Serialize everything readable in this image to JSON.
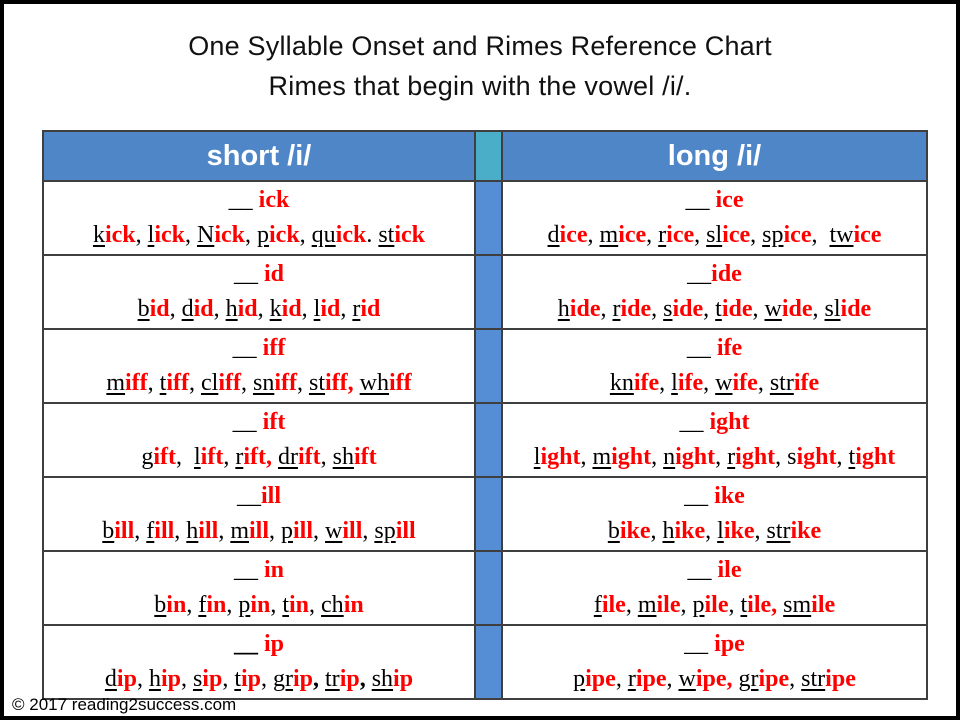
{
  "page": {
    "title_line1": "One Syllable Onset and Rimes Reference Chart",
    "title_line2": "Rimes that begin with the vowel /i/.",
    "footer": "© 2017 reading2success.com"
  },
  "colors": {
    "header_blue": "#4e86c8",
    "header_teal": "#4aaec8",
    "separator_blue": "#568ed5",
    "rime_red": "#ff0000",
    "grid_line": "#3f3f3f"
  },
  "segment_style_legend": {
    "u": "onset letters — black, underlined",
    "r": "rime letters — red, bold",
    "p": "plain black text",
    "b": "black bold text"
  },
  "table": {
    "headers": {
      "short": "short /i/",
      "long": "long /i/"
    },
    "rows": [
      {
        "short": {
          "heading": [
            [
              "__ ",
              "p"
            ],
            [
              "ick",
              "r"
            ]
          ],
          "words": [
            [
              "k",
              "u"
            ],
            [
              "ick",
              "r"
            ],
            [
              ", ",
              "p"
            ],
            [
              "l",
              "u"
            ],
            [
              "ick",
              "r"
            ],
            [
              ", ",
              "p"
            ],
            [
              "N",
              "u"
            ],
            [
              "ick",
              "r"
            ],
            [
              ", ",
              "p"
            ],
            [
              "p",
              "u"
            ],
            [
              "ick",
              "r"
            ],
            [
              ", ",
              "p"
            ],
            [
              "qu",
              "u"
            ],
            [
              "ick",
              "r"
            ],
            [
              ". ",
              "p"
            ],
            [
              "st",
              "u"
            ],
            [
              "ick",
              "r"
            ]
          ]
        },
        "long": {
          "heading": [
            [
              "__ ",
              "p"
            ],
            [
              "ice",
              "r"
            ]
          ],
          "words": [
            [
              "d",
              "u"
            ],
            [
              "ice",
              "r"
            ],
            [
              ", ",
              "p"
            ],
            [
              "m",
              "u"
            ],
            [
              "ice",
              "r"
            ],
            [
              ", ",
              "p"
            ],
            [
              "r",
              "u"
            ],
            [
              "ice",
              "r"
            ],
            [
              ", ",
              "p"
            ],
            [
              "sl",
              "u"
            ],
            [
              "ice",
              "r"
            ],
            [
              ", ",
              "p"
            ],
            [
              "sp",
              "u"
            ],
            [
              "ice",
              "r"
            ],
            [
              ",  ",
              "p"
            ],
            [
              "tw",
              "u"
            ],
            [
              "ice",
              "r"
            ]
          ]
        }
      },
      {
        "short": {
          "heading": [
            [
              "__ ",
              "p"
            ],
            [
              "id",
              "r"
            ]
          ],
          "words": [
            [
              "b",
              "u"
            ],
            [
              "id",
              "r"
            ],
            [
              ", ",
              "p"
            ],
            [
              "d",
              "u"
            ],
            [
              "id",
              "r"
            ],
            [
              ", ",
              "p"
            ],
            [
              "h",
              "u"
            ],
            [
              "id",
              "r"
            ],
            [
              ", ",
              "p"
            ],
            [
              "k",
              "u"
            ],
            [
              "id",
              "r"
            ],
            [
              ", ",
              "p"
            ],
            [
              "l",
              "u"
            ],
            [
              "id",
              "r"
            ],
            [
              ", ",
              "p"
            ],
            [
              "r",
              "u"
            ],
            [
              "id",
              "r"
            ]
          ]
        },
        "long": {
          "heading": [
            [
              "__",
              "p"
            ],
            [
              "ide",
              "r"
            ]
          ],
          "words": [
            [
              "h",
              "u"
            ],
            [
              "ide",
              "r"
            ],
            [
              ", ",
              "p"
            ],
            [
              "r",
              "u"
            ],
            [
              "ide",
              "r"
            ],
            [
              ", ",
              "p"
            ],
            [
              "s",
              "u"
            ],
            [
              "ide",
              "r"
            ],
            [
              ", ",
              "p"
            ],
            [
              "t",
              "u"
            ],
            [
              "ide",
              "r"
            ],
            [
              ", ",
              "p"
            ],
            [
              "w",
              "u"
            ],
            [
              "ide",
              "r"
            ],
            [
              ", ",
              "p"
            ],
            [
              "sl",
              "u"
            ],
            [
              "ide",
              "r"
            ]
          ]
        }
      },
      {
        "short": {
          "heading": [
            [
              "__ ",
              "p"
            ],
            [
              "iff",
              "r"
            ]
          ],
          "words": [
            [
              "m",
              "u"
            ],
            [
              "iff",
              "r"
            ],
            [
              ", ",
              "p"
            ],
            [
              "t",
              "u"
            ],
            [
              "iff",
              "r"
            ],
            [
              ", ",
              "p"
            ],
            [
              "cl",
              "u"
            ],
            [
              "iff",
              "r"
            ],
            [
              ", ",
              "p"
            ],
            [
              "sn",
              "u"
            ],
            [
              "iff",
              "r"
            ],
            [
              ", ",
              "p"
            ],
            [
              "st",
              "u"
            ],
            [
              "iff",
              "r"
            ],
            [
              ", ",
              "r"
            ],
            [
              "wh",
              "u"
            ],
            [
              "iff",
              "r"
            ]
          ]
        },
        "long": {
          "heading": [
            [
              "__ ",
              "p"
            ],
            [
              "ife",
              "r"
            ]
          ],
          "words": [
            [
              "kn",
              "u"
            ],
            [
              "ife",
              "r"
            ],
            [
              ", ",
              "p"
            ],
            [
              "l",
              "u"
            ],
            [
              "ife",
              "r"
            ],
            [
              ", ",
              "p"
            ],
            [
              "w",
              "u"
            ],
            [
              "ife",
              "r"
            ],
            [
              ", ",
              "p"
            ],
            [
              "str",
              "u"
            ],
            [
              "ife",
              "r"
            ]
          ]
        }
      },
      {
        "short": {
          "heading": [
            [
              "__ ",
              "p"
            ],
            [
              "ift",
              "r"
            ]
          ],
          "words": [
            [
              "g",
              "u"
            ],
            [
              "ift",
              "r"
            ],
            [
              ",  ",
              "p"
            ],
            [
              "l",
              "u"
            ],
            [
              "ift",
              "r"
            ],
            [
              ", ",
              "p"
            ],
            [
              "r",
              "u"
            ],
            [
              "ift",
              "r"
            ],
            [
              ", ",
              "r"
            ],
            [
              "dr",
              "u"
            ],
            [
              "ift",
              "r"
            ],
            [
              ", ",
              "p"
            ],
            [
              "sh",
              "u"
            ],
            [
              "ift",
              "r"
            ]
          ]
        },
        "long": {
          "heading": [
            [
              "__ ",
              "p"
            ],
            [
              "ight",
              "r"
            ]
          ],
          "words": [
            [
              "l",
              "u"
            ],
            [
              "ight",
              "r"
            ],
            [
              ", ",
              "p"
            ],
            [
              "m",
              "u"
            ],
            [
              "ight",
              "r"
            ],
            [
              ", ",
              "p"
            ],
            [
              "n",
              "u"
            ],
            [
              "ight",
              "r"
            ],
            [
              ", ",
              "p"
            ],
            [
              "r",
              "u"
            ],
            [
              "ight",
              "r"
            ],
            [
              ", ",
              "p"
            ],
            [
              "s",
              "p"
            ],
            [
              "ight",
              "r"
            ],
            [
              ", ",
              "p"
            ],
            [
              "t",
              "u"
            ],
            [
              "ight",
              "r"
            ]
          ]
        }
      },
      {
        "short": {
          "heading": [
            [
              "__",
              "p"
            ],
            [
              "ill",
              "r"
            ]
          ],
          "words": [
            [
              "b",
              "u"
            ],
            [
              "ill",
              "r"
            ],
            [
              ", ",
              "p"
            ],
            [
              "f",
              "u"
            ],
            [
              "ill",
              "r"
            ],
            [
              ", ",
              "p"
            ],
            [
              "h",
              "u"
            ],
            [
              "ill",
              "r"
            ],
            [
              ", ",
              "p"
            ],
            [
              "m",
              "u"
            ],
            [
              "ill",
              "r"
            ],
            [
              ", ",
              "p"
            ],
            [
              "p",
              "u"
            ],
            [
              "ill",
              "r"
            ],
            [
              ", ",
              "p"
            ],
            [
              "w",
              "u"
            ],
            [
              "ill",
              "r"
            ],
            [
              ", ",
              "p"
            ],
            [
              "sp",
              "u"
            ],
            [
              "ill",
              "r"
            ]
          ]
        },
        "long": {
          "heading": [
            [
              "__ ",
              "p"
            ],
            [
              "ike",
              "r"
            ]
          ],
          "words": [
            [
              "b",
              "u"
            ],
            [
              "ike",
              "r"
            ],
            [
              ", ",
              "p"
            ],
            [
              "h",
              "u"
            ],
            [
              "ike",
              "r"
            ],
            [
              ", ",
              "p"
            ],
            [
              "l",
              "u"
            ],
            [
              "ike",
              "r"
            ],
            [
              ", ",
              "p"
            ],
            [
              "str",
              "u"
            ],
            [
              "ike",
              "r"
            ]
          ]
        }
      },
      {
        "short": {
          "heading": [
            [
              "__ ",
              "p"
            ],
            [
              "in",
              "r"
            ]
          ],
          "words": [
            [
              "b",
              "u"
            ],
            [
              "in",
              "r"
            ],
            [
              ", ",
              "p"
            ],
            [
              "f",
              "u"
            ],
            [
              "in",
              "r"
            ],
            [
              ", ",
              "p"
            ],
            [
              "p",
              "u"
            ],
            [
              "in",
              "r"
            ],
            [
              ", ",
              "p"
            ],
            [
              "t",
              "u"
            ],
            [
              "in",
              "r"
            ],
            [
              ", ",
              "p"
            ],
            [
              "ch",
              "u"
            ],
            [
              "in",
              "r"
            ]
          ]
        },
        "long": {
          "heading": [
            [
              "__ ",
              "p"
            ],
            [
              "ile",
              "r"
            ]
          ],
          "words": [
            [
              "f",
              "u"
            ],
            [
              "ile",
              "r"
            ],
            [
              ", ",
              "p"
            ],
            [
              "m",
              "u"
            ],
            [
              "ile",
              "r"
            ],
            [
              ", ",
              "p"
            ],
            [
              "p",
              "u"
            ],
            [
              "ile",
              "r"
            ],
            [
              ", ",
              "p"
            ],
            [
              "t",
              "u"
            ],
            [
              "ile",
              "r"
            ],
            [
              ", ",
              "r"
            ],
            [
              "sm",
              "u"
            ],
            [
              "ile",
              "r"
            ]
          ]
        }
      },
      {
        "short": {
          "heading": [
            [
              "__ ",
              "b"
            ],
            [
              "ip",
              "r"
            ]
          ],
          "words": [
            [
              "d",
              "u"
            ],
            [
              "ip",
              "r"
            ],
            [
              ", ",
              "p"
            ],
            [
              "h",
              "u"
            ],
            [
              "ip",
              "r"
            ],
            [
              ", ",
              "p"
            ],
            [
              "s",
              "u"
            ],
            [
              "ip",
              "r"
            ],
            [
              ", ",
              "p"
            ],
            [
              "t",
              "u"
            ],
            [
              "ip",
              "r"
            ],
            [
              ", ",
              "p"
            ],
            [
              "gr",
              "u"
            ],
            [
              "ip",
              "r"
            ],
            [
              ", ",
              "b"
            ],
            [
              "tr",
              "u"
            ],
            [
              "ip",
              "r"
            ],
            [
              ", ",
              "b"
            ],
            [
              "sh",
              "u"
            ],
            [
              "ip",
              "r"
            ]
          ]
        },
        "long": {
          "heading": [
            [
              "__ ",
              "p"
            ],
            [
              "ipe",
              "r"
            ]
          ],
          "words": [
            [
              "p",
              "u"
            ],
            [
              "ipe",
              "r"
            ],
            [
              ", ",
              "p"
            ],
            [
              "r",
              "u"
            ],
            [
              "ipe",
              "r"
            ],
            [
              ", ",
              "p"
            ],
            [
              "w",
              "u"
            ],
            [
              "ipe",
              "r"
            ],
            [
              ", ",
              "r"
            ],
            [
              "gr",
              "u"
            ],
            [
              "ipe",
              "r"
            ],
            [
              ", ",
              "p"
            ],
            [
              "str",
              "u"
            ],
            [
              "ipe",
              "r"
            ]
          ]
        }
      }
    ]
  }
}
